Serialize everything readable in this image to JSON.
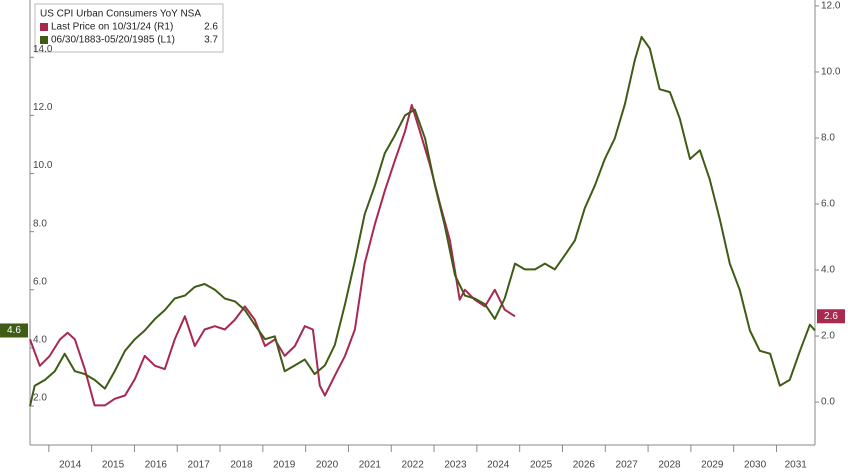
{
  "chart_data": {
    "type": "line",
    "title": "US CPI Urban Consumers YoY NSA",
    "xlim": [
      2013.56,
      2031.9
    ],
    "xticks": [
      2014,
      2015,
      2016,
      2017,
      2018,
      2019,
      2020,
      2021,
      2022,
      2023,
      2024,
      2025,
      2026,
      2027,
      2028,
      2029,
      2030,
      2031
    ],
    "ylim": [
      0.66,
      15.97
    ],
    "yticks": [
      {
        "value": 2,
        "label": "2.0"
      },
      {
        "value": 4,
        "label": "4.0"
      },
      {
        "value": 6,
        "label": "6.0"
      },
      {
        "value": 8,
        "label": "8.0"
      },
      {
        "value": 10,
        "label": "10.0"
      },
      {
        "value": 12,
        "label": "12.0"
      },
      {
        "value": 14,
        "label": "14.0"
      }
    ],
    "y2lim": [
      -1.3,
      12.18
    ],
    "y2ticks": [
      {
        "value": 0,
        "label": "0.0"
      },
      {
        "value": 2,
        "label": "2.0"
      },
      {
        "value": 4,
        "label": "4.0"
      },
      {
        "value": 6,
        "label": "6.0"
      },
      {
        "value": 8,
        "label": "8.0"
      },
      {
        "value": 10,
        "label": "10.0"
      },
      {
        "value": 12,
        "label": "12.0"
      }
    ],
    "grid": false,
    "legend": "top-left",
    "series": [
      {
        "name": "Last Price on 10/31/24 (R1)",
        "legend_value": 2.6,
        "last_label": 2.6,
        "color": "#a8284e",
        "axis": "y2",
        "x": [
          2013.56,
          2013.79,
          2014.02,
          2014.26,
          2014.44,
          2014.61,
          2014.84,
          2015.07,
          2015.31,
          2015.54,
          2015.78,
          2016.01,
          2016.24,
          2016.48,
          2016.71,
          2016.94,
          2017.18,
          2017.41,
          2017.64,
          2017.88,
          2018.11,
          2018.35,
          2018.58,
          2018.81,
          2019.05,
          2019.28,
          2019.51,
          2019.75,
          2019.98,
          2020.17,
          2020.33,
          2020.45,
          2020.68,
          2020.92,
          2021.15,
          2021.38,
          2021.62,
          2021.85,
          2022.08,
          2022.32,
          2022.48,
          2022.67,
          2022.9,
          2023.14,
          2023.37,
          2023.6,
          2023.72,
          2023.95,
          2024.19,
          2024.42,
          2024.65,
          2024.89
        ],
        "values": [
          1.9,
          1.1,
          1.4,
          1.9,
          2.1,
          1.9,
          1.0,
          -0.1,
          -0.1,
          0.1,
          0.2,
          0.7,
          1.4,
          1.1,
          1.0,
          1.9,
          2.6,
          1.7,
          2.2,
          2.3,
          2.2,
          2.5,
          2.9,
          2.5,
          1.7,
          1.9,
          1.4,
          1.7,
          2.3,
          2.2,
          0.5,
          0.2,
          0.8,
          1.4,
          2.2,
          4.2,
          5.4,
          6.4,
          7.3,
          8.2,
          9.0,
          8.2,
          7.2,
          6.0,
          4.9,
          3.1,
          3.4,
          3.1,
          2.9,
          3.4,
          2.8,
          2.6
        ]
      },
      {
        "name": "06/30/1883-05/20/1985 (L1)",
        "legend_value": 3.7,
        "last_label": 4.6,
        "color": "#3f5c16",
        "axis": "y",
        "x": [
          2013.56,
          2013.67,
          2013.91,
          2014.14,
          2014.37,
          2014.61,
          2014.84,
          2015.07,
          2015.31,
          2015.54,
          2015.78,
          2016.01,
          2016.24,
          2016.48,
          2016.71,
          2016.94,
          2017.18,
          2017.41,
          2017.64,
          2017.88,
          2018.11,
          2018.35,
          2018.58,
          2018.81,
          2019.05,
          2019.28,
          2019.51,
          2019.75,
          2019.98,
          2020.21,
          2020.45,
          2020.68,
          2020.92,
          2021.15,
          2021.38,
          2021.62,
          2021.85,
          2022.08,
          2022.32,
          2022.55,
          2022.79,
          2023.02,
          2023.25,
          2023.49,
          2023.72,
          2023.95,
          2024.19,
          2024.42,
          2024.65,
          2024.89,
          2025.12,
          2025.36,
          2025.59,
          2025.82,
          2026.06,
          2026.29,
          2026.52,
          2026.76,
          2026.99,
          2027.22,
          2027.46,
          2027.69,
          2027.85,
          2028.04,
          2028.27,
          2028.51,
          2028.74,
          2028.98,
          2029.21,
          2029.44,
          2029.68,
          2029.91,
          2030.14,
          2030.38,
          2030.61,
          2030.85,
          2031.08,
          2031.31,
          2031.55,
          2031.78,
          2031.9
        ],
        "values": [
          2.0,
          2.7,
          2.9,
          3.2,
          3.8,
          3.2,
          3.1,
          2.9,
          2.6,
          3.2,
          3.9,
          4.3,
          4.6,
          5.0,
          5.3,
          5.7,
          5.8,
          6.1,
          6.2,
          6.0,
          5.7,
          5.6,
          5.3,
          4.8,
          4.3,
          4.4,
          3.2,
          3.4,
          3.6,
          3.1,
          3.4,
          4.1,
          5.5,
          7.0,
          8.6,
          9.6,
          10.7,
          11.3,
          12.0,
          12.2,
          11.2,
          9.6,
          8.2,
          6.5,
          5.8,
          5.7,
          5.5,
          5.0,
          5.7,
          6.9,
          6.7,
          6.7,
          6.9,
          6.7,
          7.2,
          7.7,
          8.8,
          9.6,
          10.5,
          11.2,
          12.4,
          13.9,
          14.7,
          14.3,
          12.9,
          12.8,
          11.9,
          10.5,
          10.8,
          9.8,
          8.4,
          6.9,
          6.0,
          4.6,
          3.9,
          3.8,
          2.7,
          2.9,
          3.9,
          4.8,
          4.6
        ]
      }
    ]
  }
}
